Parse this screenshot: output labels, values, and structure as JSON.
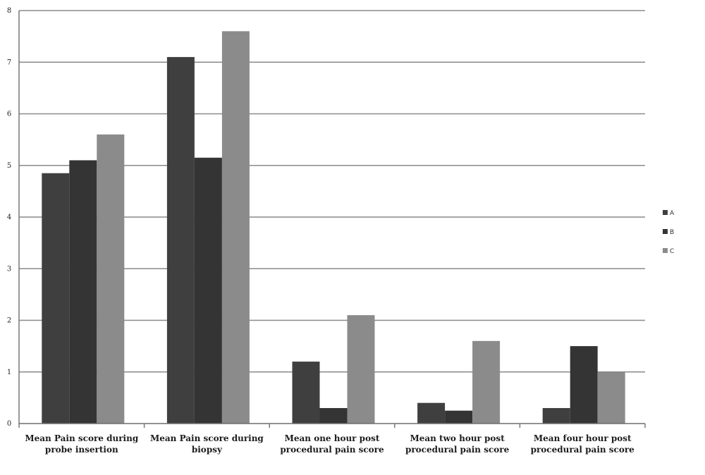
{
  "chart_data": {
    "type": "bar",
    "categories": [
      [
        "Mean Pain score during",
        "probe insertion"
      ],
      [
        "Mean Pain score during",
        "biopsy"
      ],
      [
        "Mean one hour post",
        "procedural pain score"
      ],
      [
        "Mean two hour post",
        "procedural pain score"
      ],
      [
        "Mean four hour post",
        "procedural pain score"
      ]
    ],
    "series": [
      {
        "name": "A",
        "color": "#3f3f3f",
        "values": [
          4.85,
          7.1,
          1.2,
          0.4,
          0.3
        ]
      },
      {
        "name": "B",
        "color": "#343434",
        "values": [
          5.1,
          5.15,
          0.3,
          0.25,
          1.5
        ]
      },
      {
        "name": "C",
        "color": "#8b8b8b",
        "values": [
          5.6,
          7.6,
          2.1,
          1.6,
          1.0
        ]
      }
    ],
    "ylim": [
      0,
      8
    ],
    "yticks": [
      "0",
      "1",
      "2",
      "3",
      "4",
      "5",
      "6",
      "7",
      "8"
    ],
    "grid": true,
    "legend_position": "right"
  }
}
